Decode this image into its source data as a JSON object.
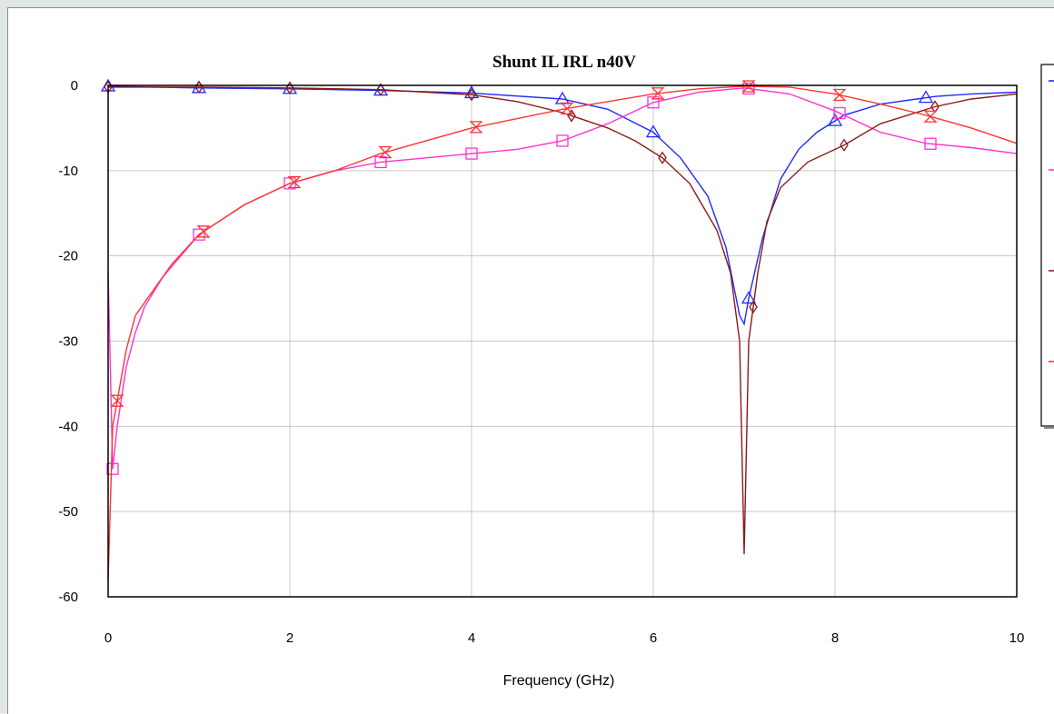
{
  "chart_data": {
    "type": "line",
    "title": "Shunt IL IRL n40V",
    "xlabel": "Frequency (GHz)",
    "ylabel": "",
    "xlim": [
      0,
      10
    ],
    "ylim": [
      -60,
      0
    ],
    "xticks": [
      0,
      2,
      4,
      6,
      8,
      10
    ],
    "yticks": [
      0,
      -10,
      -20,
      -30,
      -40,
      -50,
      -60
    ],
    "grid": true,
    "legend_position": "right (partially cut off)",
    "series": [
      {
        "color": "#1f2bff",
        "marker": "triangle",
        "x": [
          0,
          0.5,
          1,
          2,
          3,
          4,
          5,
          5.5,
          6,
          6.3,
          6.6,
          6.8,
          6.95,
          7.0,
          7.05,
          7.2,
          7.4,
          7.6,
          7.8,
          8.1,
          8.5,
          9.1,
          9.5,
          10
        ],
        "y": [
          -0.1,
          -0.2,
          -0.3,
          -0.4,
          -0.6,
          -0.9,
          -1.6,
          -2.8,
          -5.5,
          -8.5,
          -13,
          -19,
          -27,
          -28,
          -25,
          -18,
          -11,
          -7.5,
          -5.5,
          -3.5,
          -2.2,
          -1.3,
          -1.0,
          -0.8
        ]
      },
      {
        "color": "#ff33cc",
        "marker": "square",
        "x": [
          0,
          0.05,
          0.1,
          0.2,
          0.3,
          0.4,
          0.6,
          0.8,
          1,
          1.5,
          2,
          2.5,
          3,
          3.5,
          4,
          4.5,
          5,
          5.5,
          6,
          6.5,
          7,
          7.5,
          8,
          8.5,
          9,
          9.5,
          10
        ],
        "y": [
          -22,
          -45,
          -40,
          -33,
          -29,
          -26,
          -22.5,
          -20,
          -17.5,
          -14,
          -11.5,
          -10,
          -9,
          -8.5,
          -8,
          -7.5,
          -6.5,
          -4.5,
          -2,
          -0.8,
          -0.3,
          -1,
          -3,
          -5.5,
          -6.8,
          -7.3,
          -8
        ]
      },
      {
        "color": "#8b1a1a",
        "marker": "diamond",
        "x": [
          0,
          0.5,
          1,
          2,
          3,
          4,
          4.5,
          5,
          5.5,
          5.8,
          6.1,
          6.4,
          6.7,
          6.85,
          6.95,
          7.0,
          7.05,
          7.1,
          7.15,
          7.25,
          7.4,
          7.7,
          8.1,
          8.5,
          9.1,
          9.5,
          10
        ],
        "y": [
          -0.2,
          -0.2,
          -0.2,
          -0.3,
          -0.5,
          -1.1,
          -1.9,
          -3.2,
          -5,
          -6.5,
          -8.5,
          -11.5,
          -17,
          -22,
          -30,
          -55,
          -30,
          -26,
          -22,
          -16,
          -12,
          -9,
          -7,
          -4.5,
          -2.5,
          -1.6,
          -1
        ]
      },
      {
        "color": "#ff3333",
        "marker": "hourglass",
        "x": [
          0,
          0.05,
          0.1,
          0.2,
          0.3,
          0.5,
          0.7,
          1,
          1.5,
          2,
          2.5,
          3,
          4,
          5,
          6,
          6.5,
          7,
          7.5,
          8,
          8.5,
          9,
          9.5,
          10
        ],
        "y": [
          -58,
          -40,
          -37,
          -31,
          -27,
          -24,
          -21,
          -17.5,
          -14,
          -11.5,
          -10,
          -8,
          -5,
          -2.8,
          -1,
          -0.4,
          -0.1,
          -0.2,
          -1,
          -2.2,
          -3.5,
          -5,
          -6.8
        ]
      }
    ]
  }
}
